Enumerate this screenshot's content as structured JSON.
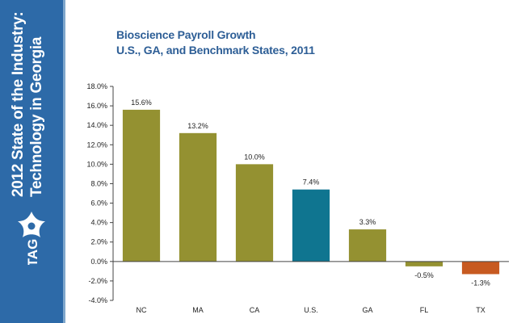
{
  "sidebar": {
    "title_line1": "2012 State of the Industry:",
    "title_line2": "Technology in Georgia",
    "logo_text": "TAG",
    "logo_icon": "tag-star-logo-icon",
    "color": "#2d6aa8"
  },
  "chart_data": {
    "type": "bar",
    "title": "Bioscience Payroll Growth",
    "subtitle": "U.S., GA, and Benchmark States, 2011",
    "categories": [
      "NC",
      "MA",
      "CA",
      "U.S.",
      "GA",
      "FL",
      "TX"
    ],
    "values": [
      15.6,
      13.2,
      10.0,
      7.4,
      3.3,
      -0.5,
      -1.3
    ],
    "data_labels": [
      "15.6%",
      "13.2%",
      "10.0%",
      "7.4%",
      "3.3%",
      "-0.5%",
      "-1.3%"
    ],
    "colors": [
      "#949131",
      "#949131",
      "#949131",
      "#0f7590",
      "#949131",
      "#949131",
      "#c75a21"
    ],
    "ylim": [
      -4,
      18
    ],
    "yticks": [
      -4,
      -2,
      0,
      2,
      4,
      6,
      8,
      10,
      12,
      14,
      16,
      18
    ],
    "ytick_labels": [
      "-4.0%",
      "-2.0%",
      "0.0%",
      "2.0%",
      "4.0%",
      "6.0%",
      "8.0%",
      "10.0%",
      "12.0%",
      "14.0%",
      "16.0%",
      "18.0%"
    ],
    "xlabel": "",
    "ylabel": "",
    "grid": false,
    "legend": "none"
  }
}
